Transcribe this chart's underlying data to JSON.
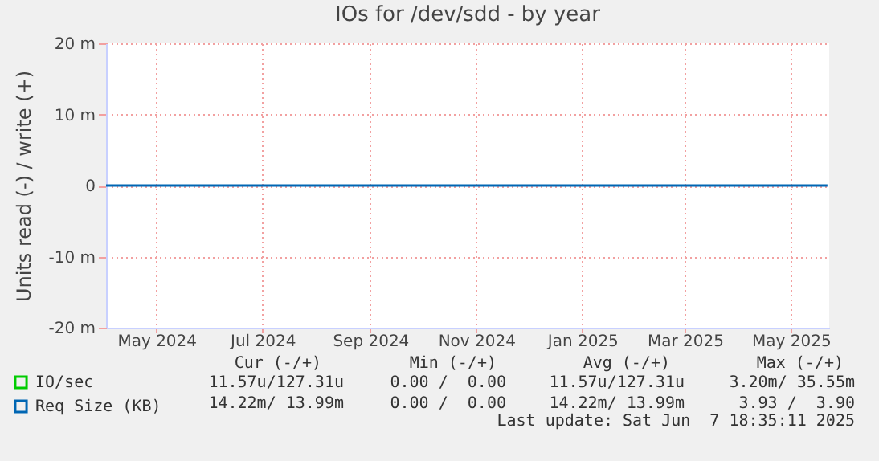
{
  "chart_data": {
    "type": "line",
    "title": "IOs for /dev/sdd - by year",
    "ylabel": "Units read (-) / write (+)",
    "x": [
      "2024-04-02",
      "2024-05-01",
      "2024-06-01",
      "2024-07-01",
      "2024-08-01",
      "2024-09-01",
      "2024-10-01",
      "2024-11-01",
      "2024-12-01",
      "2025-01-01",
      "2025-02-01",
      "2025-03-01",
      "2025-04-01",
      "2025-05-01",
      "2025-05-22"
    ],
    "series": [
      {
        "name": "IO/sec",
        "color": "#00cc00",
        "values": [
          null,
          null,
          null,
          null,
          null,
          null,
          null,
          null,
          null,
          null,
          null,
          null,
          null,
          null,
          null
        ]
      },
      {
        "name": "Req Size (KB)",
        "color": "#0066b3",
        "values": [
          0,
          0,
          0,
          0,
          0,
          0,
          0,
          0,
          0,
          0,
          0,
          0,
          0,
          0,
          0
        ]
      }
    ],
    "xlim": [
      "2024-04-02",
      "2025-05-23"
    ],
    "xticks": [
      {
        "value": "2024-05-01",
        "label": "May 2024"
      },
      {
        "value": "2024-07-01",
        "label": "Jul 2024"
      },
      {
        "value": "2024-09-01",
        "label": "Sep 2024"
      },
      {
        "value": "2024-11-01",
        "label": "Nov 2024"
      },
      {
        "value": "2025-01-01",
        "label": "Jan 2025"
      },
      {
        "value": "2025-03-01",
        "label": "Mar 2025"
      },
      {
        "value": "2025-05-01",
        "label": "May 2025"
      }
    ],
    "ylim": [
      -20,
      20
    ],
    "yticks": [
      {
        "value": -20,
        "label": "-20 m"
      },
      {
        "value": -10,
        "label": "-10 m"
      },
      0,
      {
        "value": 10,
        "label": "10 m"
      },
      {
        "value": 20,
        "label": "20 m"
      }
    ],
    "grid": true,
    "legend": "bottom left",
    "marker": "none",
    "line_style": "solid",
    "annotations": [
      "Cur (-/+)",
      "Min (-/+)",
      "Avg (-/+)",
      "Max (-/+)",
      "11.57u/127.31u",
      "0.00 /  0.00",
      "11.57u/127.31u",
      "3.20m/ 35.55m",
      "14.22m/ 13.99m",
      "0.00 /  0.00",
      "14.22m/ 13.99m",
      "3.93 /  3.90",
      "Last update: Sat Jun  7 18:35:11 2025"
    ]
  }
}
